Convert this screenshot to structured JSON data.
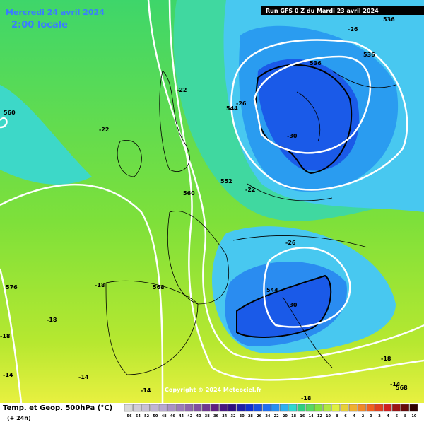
{
  "header": {
    "date": "Mercredi 24 avril 2024",
    "time": "2:00 locale",
    "run": "Run GFS 0 Z du Mardi 23 avril 2024"
  },
  "map": {
    "labels": [
      -22,
      -22,
      544,
      -26,
      536,
      536,
      -26,
      536,
      -30,
      552,
      -22,
      560,
      560,
      -26,
      544,
      -30,
      -18,
      568,
      576,
      -18,
      -18,
      -14,
      -14,
      -14,
      -14,
      568,
      -18,
      -18
    ]
  },
  "copyright": "Copyright © 2024 Meteociel.fr",
  "legend": {
    "title": "Temp. et Geop. 500hPa (°C)",
    "lead": "(+ 24h)",
    "scale": [
      -56,
      -54,
      -52,
      -50,
      -48,
      -46,
      -44,
      -42,
      -40,
      -38,
      -36,
      -34,
      -32,
      -30,
      -28,
      -26,
      -24,
      -22,
      -20,
      -18,
      -16,
      -14,
      -12,
      -10,
      -8,
      -6,
      -4,
      -2,
      0,
      2,
      4,
      6,
      8,
      10
    ]
  }
}
